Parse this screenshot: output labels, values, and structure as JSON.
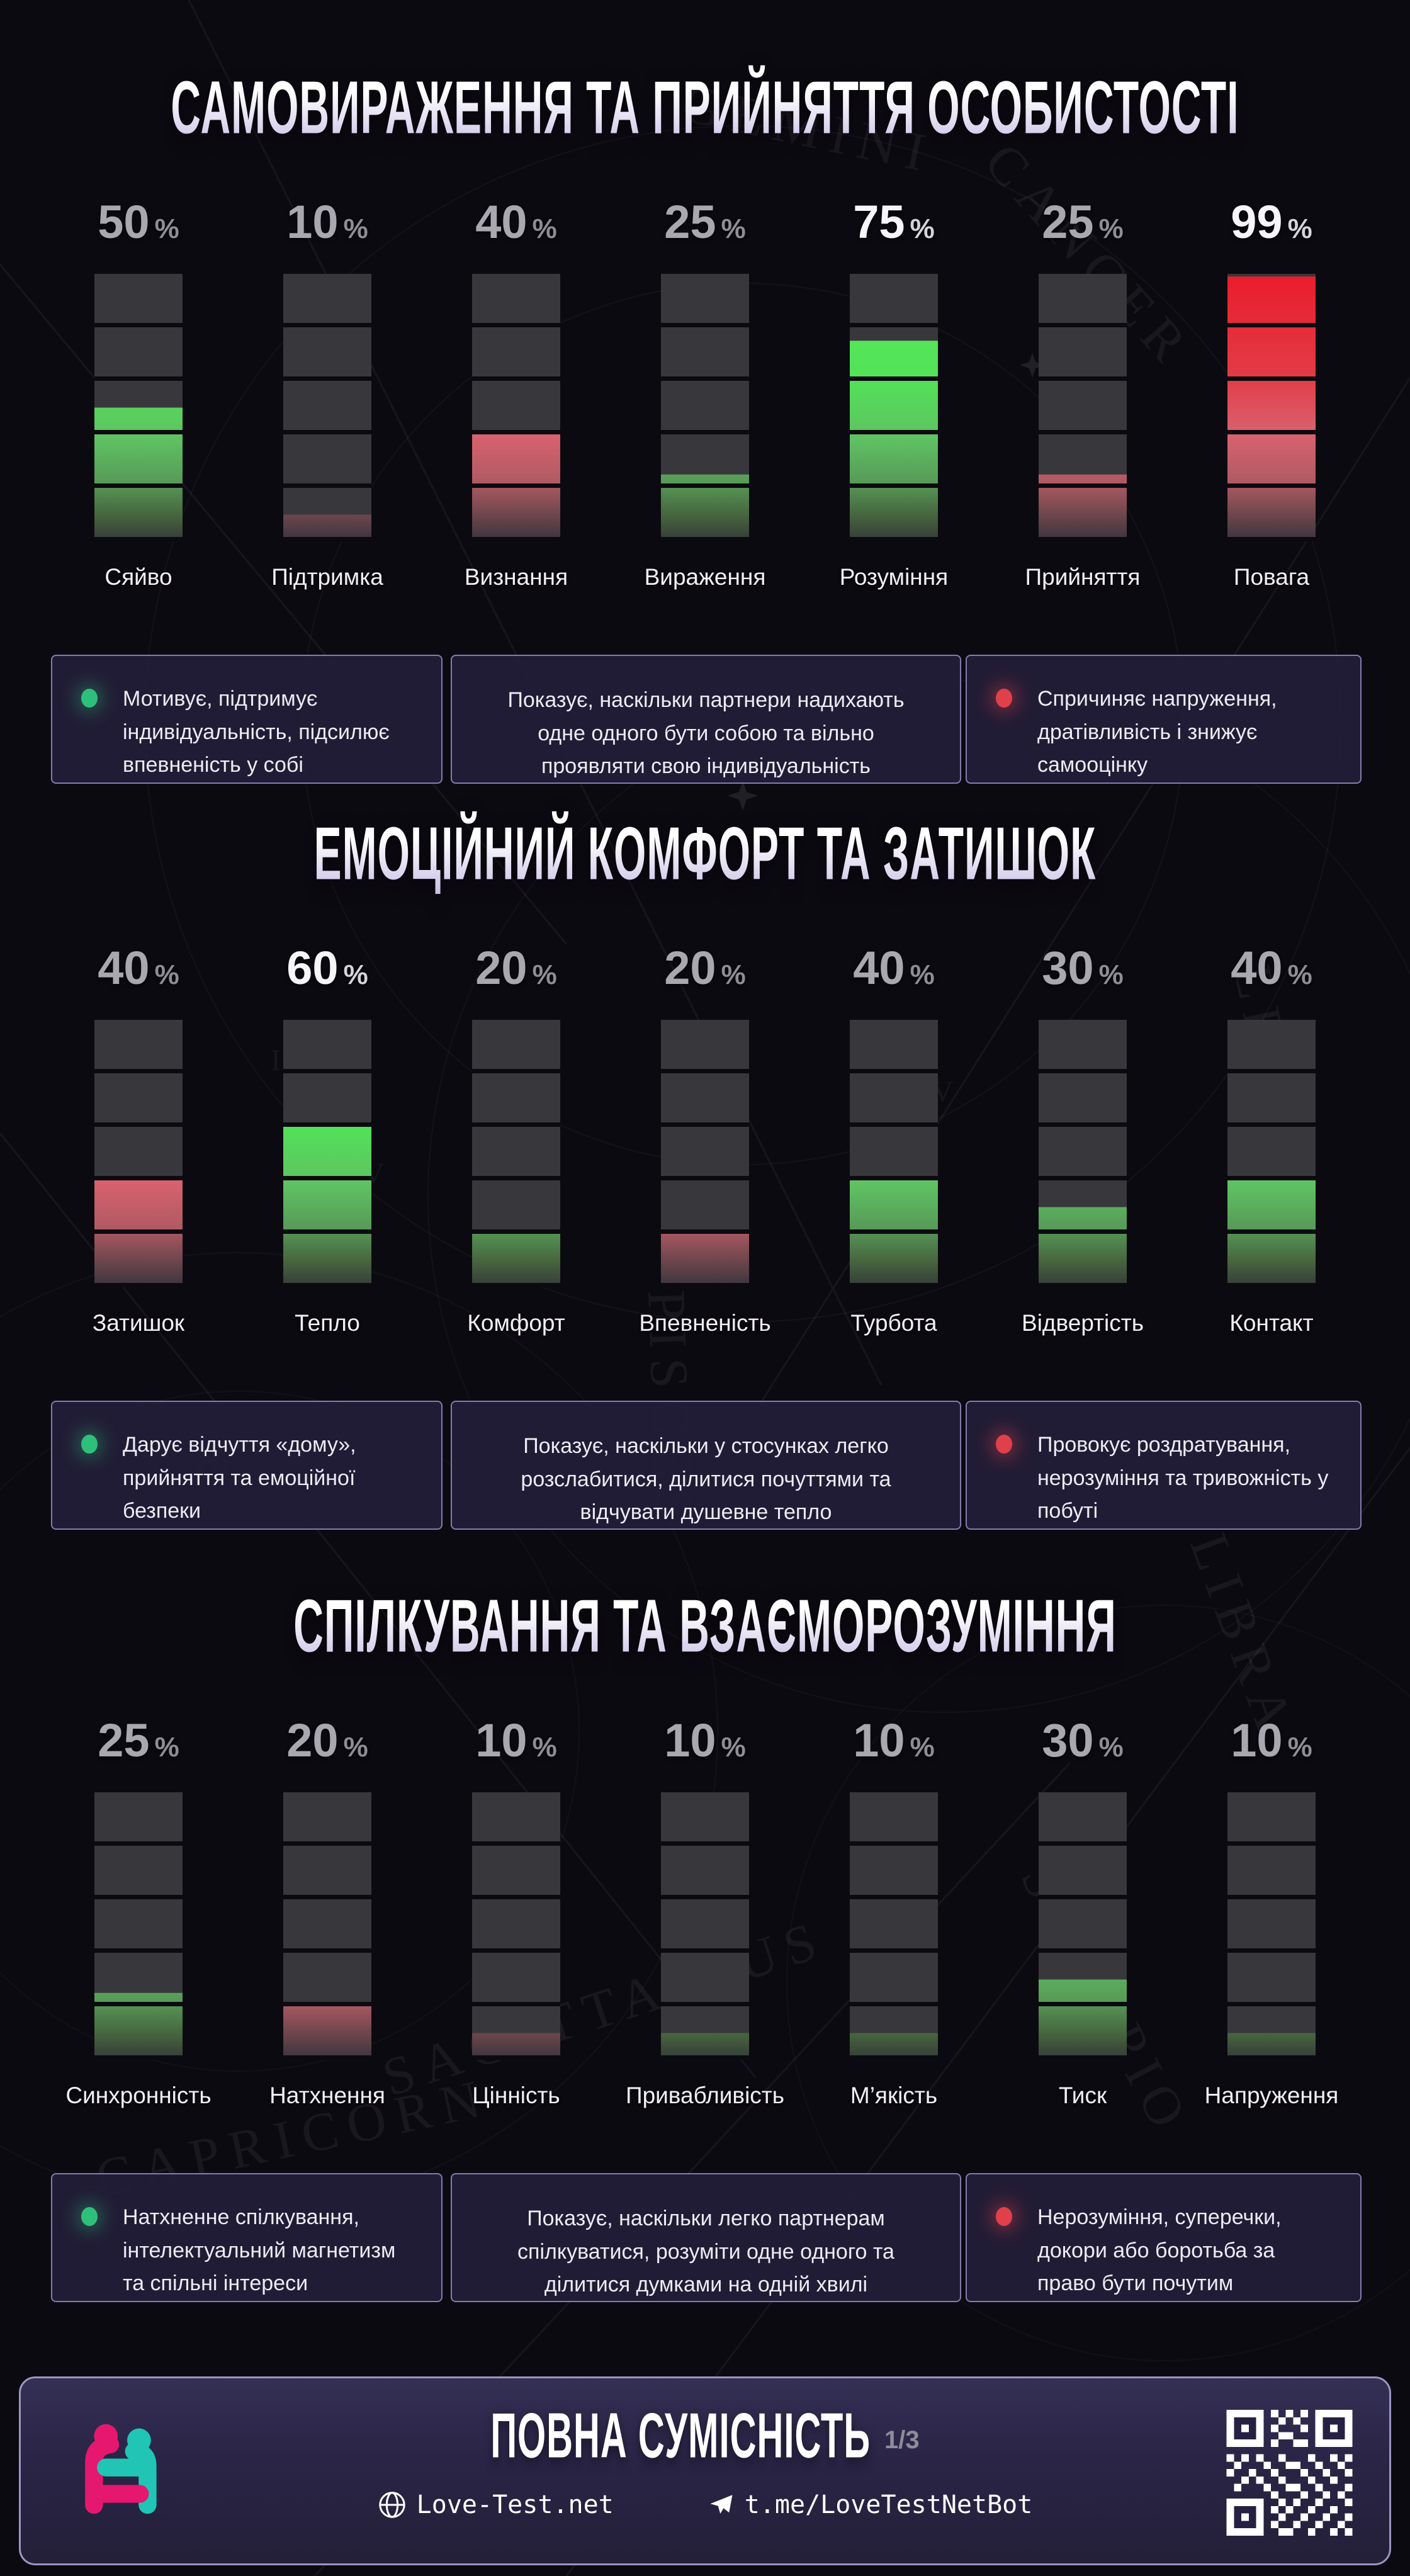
{
  "page": {
    "background": "#0c0a11"
  },
  "sections": [
    {
      "title": "САМОВИРАЖЕННЯ ТА ПРИЙНЯТТЯ ОСОБИСТОСТІ",
      "metrics": [
        {
          "label": "Сяйво",
          "value": 50,
          "color": "green"
        },
        {
          "label": "Підтримка",
          "value": 10,
          "color": "red"
        },
        {
          "label": "Визнання",
          "value": 40,
          "color": "red"
        },
        {
          "label": "Вираження",
          "value": 25,
          "color": "green"
        },
        {
          "label": "Розуміння",
          "value": 75,
          "color": "green"
        },
        {
          "label": "Прийняття",
          "value": 25,
          "color": "red"
        },
        {
          "label": "Повага",
          "value": 99,
          "color": "red"
        }
      ],
      "info_boxes": {
        "positive": "Мотивує, підтримує індивідуальність, підсилює впевненість у собі",
        "neutral": "Показує, наскільки партнери надихають одне одного бути собою та вільно проявляти свою індивідуальність",
        "negative": "Спричиняє напруження, дратівливість і знижує самооцінку"
      }
    },
    {
      "title": "ЕМОЦІЙНИЙ КОМФОРТ ТА ЗАТИШОК",
      "metrics": [
        {
          "label": "Затишок",
          "value": 40,
          "color": "red"
        },
        {
          "label": "Тепло",
          "value": 60,
          "color": "green"
        },
        {
          "label": "Комфорт",
          "value": 20,
          "color": "green"
        },
        {
          "label": "Впевненість",
          "value": 20,
          "color": "red"
        },
        {
          "label": "Турбота",
          "value": 40,
          "color": "green"
        },
        {
          "label": "Відвертість",
          "value": 30,
          "color": "green"
        },
        {
          "label": "Контакт",
          "value": 40,
          "color": "green"
        }
      ],
      "info_boxes": {
        "positive": "Дарує відчуття «дому», прийняття та емоційної безпеки",
        "neutral": "Показує, наскільки у стосунках легко розслабитися, ділитися почуттями та відчувати душевне тепло",
        "negative": "Провокує роздратування, нерозуміння та тривожність у побуті"
      }
    },
    {
      "title": "СПІЛКУВАННЯ ТА ВЗАЄМОРОЗУМІННЯ",
      "metrics": [
        {
          "label": "Синхронність",
          "value": 25,
          "color": "green"
        },
        {
          "label": "Натхнення",
          "value": 20,
          "color": "red"
        },
        {
          "label": "Цінність",
          "value": 10,
          "color": "red"
        },
        {
          "label": "Привабливість",
          "value": 10,
          "color": "green"
        },
        {
          "label": "М’якість",
          "value": 10,
          "color": "green"
        },
        {
          "label": "Тиск",
          "value": 30,
          "color": "green"
        },
        {
          "label": "Напруження",
          "value": 10,
          "color": "green"
        }
      ],
      "info_boxes": {
        "positive": "Натхненне спілкування, інтелектуальний магнетизм та спільні інтереси",
        "neutral": "Показує, наскільки легко партнерам спілкуватися, розуміти одне одного та ділитися думками на одній хвилі",
        "negative": "Нерозуміння, суперечки, докори або боротьба за право бути почутим"
      }
    }
  ],
  "percent_sign": "%",
  "footer": {
    "title": "ПОВНА СУМІСНІСТЬ",
    "page_indicator": "1/3",
    "website": "Love-Test.net",
    "telegram": "t.me/LoveTestNetBot"
  },
  "colors": {
    "green_bright": "#55e759",
    "red_bright": "#e7202e",
    "positive_dot": "#2ec07a",
    "negative_dot": "#e0404a",
    "accent_border": "#837caf",
    "logo_pink": "#e5176f",
    "logo_teal": "#20c5b5",
    "highlight_min_value": 51
  },
  "chart_data": [
    {
      "type": "bar",
      "title": "САМОВИРАЖЕННЯ ТА ПРИЙНЯТТЯ ОСОБИСТОСТІ",
      "categories": [
        "Сяйво",
        "Підтримка",
        "Визнання",
        "Вираження",
        "Розуміння",
        "Прийняття",
        "Повага"
      ],
      "values": [
        50,
        10,
        40,
        25,
        75,
        25,
        99
      ],
      "bar_colors": [
        "green",
        "red",
        "red",
        "green",
        "green",
        "red",
        "red"
      ],
      "ylim": [
        0,
        100
      ],
      "unit": "%",
      "segments_per_bar": 5,
      "legend": "off",
      "grid": "off"
    },
    {
      "type": "bar",
      "title": "ЕМОЦІЙНИЙ КОМФОРТ ТА ЗАТИШОК",
      "categories": [
        "Затишок",
        "Тепло",
        "Комфорт",
        "Впевненість",
        "Турбота",
        "Відвертість",
        "Контакт"
      ],
      "values": [
        40,
        60,
        20,
        20,
        40,
        30,
        40
      ],
      "bar_colors": [
        "red",
        "green",
        "green",
        "red",
        "green",
        "green",
        "green"
      ],
      "ylim": [
        0,
        100
      ],
      "unit": "%",
      "segments_per_bar": 5,
      "legend": "off",
      "grid": "off"
    },
    {
      "type": "bar",
      "title": "СПІЛКУВАННЯ ТА ВЗАЄМОРОЗУМІННЯ",
      "categories": [
        "Синхронність",
        "Натхнення",
        "Цінність",
        "Привабливість",
        "М’якість",
        "Тиск",
        "Напруження"
      ],
      "values": [
        25,
        20,
        10,
        10,
        10,
        30,
        10
      ],
      "bar_colors": [
        "green",
        "red",
        "red",
        "green",
        "green",
        "green",
        "green"
      ],
      "ylim": [
        0,
        100
      ],
      "unit": "%",
      "segments_per_bar": 5,
      "legend": "off",
      "grid": "off"
    }
  ]
}
